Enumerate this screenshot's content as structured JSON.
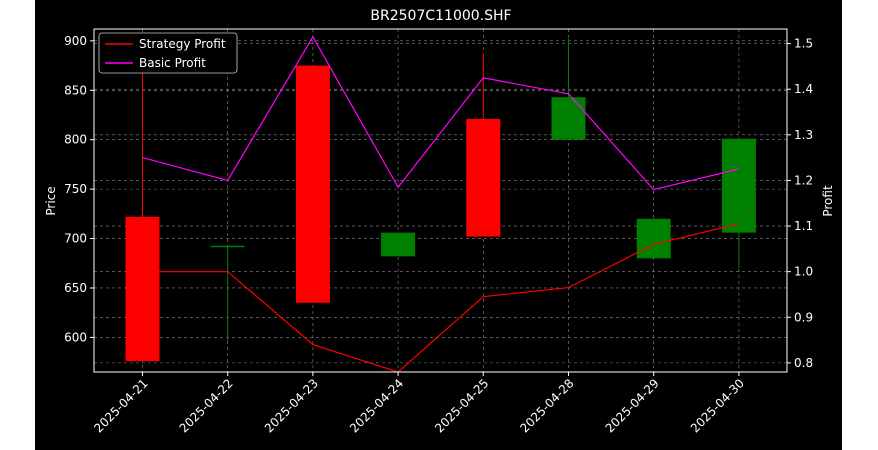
{
  "chart_data": {
    "type": "candlestick",
    "title": "BR2507C11000.SHF",
    "xlabel": "",
    "ylabel": "Price",
    "y2label": "Profit",
    "categories": [
      "2025-04-21",
      "2025-04-22",
      "2025-04-23",
      "2025-04-24",
      "2025-04-25",
      "2025-04-28",
      "2025-04-29",
      "2025-04-30"
    ],
    "ylim": [
      565,
      912
    ],
    "y2lim": [
      0.78,
      1.532
    ],
    "yticks": [
      600,
      650,
      700,
      750,
      800,
      850,
      900
    ],
    "y2ticks": [
      0.8,
      0.9,
      1.0,
      1.1,
      1.2,
      1.3,
      1.4,
      1.5
    ],
    "ohlc": [
      {
        "date": "2025-04-21",
        "open": 722,
        "high": 875,
        "low": 576,
        "close": 576
      },
      {
        "date": "2025-04-22",
        "open": 692,
        "high": 692,
        "low": 597,
        "close": 692
      },
      {
        "date": "2025-04-23",
        "open": 875,
        "high": 875,
        "low": 635,
        "close": 635
      },
      {
        "date": "2025-04-24",
        "open": 682,
        "high": 706,
        "low": 682,
        "close": 706
      },
      {
        "date": "2025-04-25",
        "open": 821,
        "high": 888,
        "low": 702,
        "close": 702
      },
      {
        "date": "2025-04-28",
        "open": 800,
        "high": 902,
        "low": 800,
        "close": 843
      },
      {
        "date": "2025-04-29",
        "open": 680,
        "high": 720,
        "low": 680,
        "close": 720
      },
      {
        "date": "2025-04-30",
        "open": 706,
        "high": 801,
        "low": 670,
        "close": 801
      }
    ],
    "series": [
      {
        "name": "Strategy Profit",
        "axis": "right",
        "color": "#ff0000",
        "values": [
          1.0,
          1.0,
          0.84,
          0.78,
          0.945,
          0.965,
          1.06,
          1.105
        ]
      },
      {
        "name": "Basic Profit",
        "axis": "right",
        "color": "#ff00ff",
        "values": [
          1.25,
          1.2,
          1.515,
          1.185,
          1.425,
          1.39,
          1.18,
          1.225
        ]
      }
    ],
    "up_color": "#008000",
    "down_color": "#ff0000",
    "grid": true,
    "legend": "top-left"
  }
}
